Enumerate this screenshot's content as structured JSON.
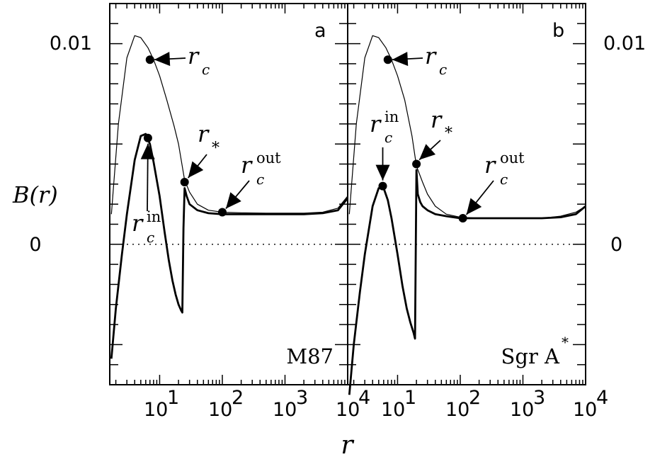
{
  "chart_data": {
    "type": "line",
    "ylabel": "B(r)",
    "xlabel": "r",
    "xscale": "log",
    "xlim": [
      1.6,
      10000
    ],
    "ylim": [
      -0.007,
      0.012
    ],
    "grid": false,
    "reference_line": {
      "y": 0,
      "style": "dotted"
    },
    "x_tick_labels": [
      "10",
      "10",
      "10",
      "10"
    ],
    "x_tick_exponents": [
      "1",
      "2",
      "3",
      "4"
    ],
    "y_tick_labels": [
      "0.01",
      "0"
    ],
    "panels": [
      {
        "letter": "a",
        "object": "M87",
        "series": [
          {
            "x": [
              1.7,
              2.2,
              3,
              4,
              5,
              6.5,
              8,
              10,
              13,
              17,
              20,
              25,
              30,
              40,
              60,
              100,
              200,
              500,
              1000,
              2000,
              4000,
              7000,
              10000
            ],
            "y": [
              0.0015,
              0.006,
              0.0093,
              0.0104,
              0.0103,
              0.0098,
              0.0092,
              0.0084,
              0.0072,
              0.0059,
              0.005,
              0.0032,
              0.0026,
              0.002,
              0.0017,
              0.0016,
              0.00157,
              0.00155,
              0.00155,
              0.00155,
              0.0016,
              0.0018,
              0.0024
            ]
          },
          {
            "x": [
              1.7,
              2,
              2.5,
              3,
              4,
              5,
              6,
              7,
              8,
              10,
              12,
              14,
              16,
              18,
              20,
              22,
              23,
              24,
              25,
              27,
              30,
              40,
              60,
              100,
              200,
              500,
              1000,
              2000,
              4000,
              7000,
              10000
            ],
            "y": [
              -0.0057,
              -0.0032,
              -0.0005,
              0.0015,
              0.0042,
              0.0054,
              0.0055,
              0.005,
              0.0041,
              0.0024,
              0.0006,
              -0.0008,
              -0.0018,
              -0.0025,
              -0.003,
              -0.0033,
              -0.0034,
              0.0008,
              0.0028,
              0.0024,
              0.002,
              0.0017,
              0.00155,
              0.0015,
              0.0015,
              0.0015,
              0.0015,
              0.0015,
              0.00155,
              0.0017,
              0.0023
            ]
          }
        ],
        "points": [
          {
            "name": "r_c",
            "x": 7,
            "y": 0.0092
          },
          {
            "name": "r_c^in",
            "x": 6.5,
            "y": 0.0053
          },
          {
            "name": "r_*",
            "x": 25,
            "y": 0.0031
          },
          {
            "name": "r_c^out",
            "x": 100,
            "y": 0.0016
          }
        ]
      },
      {
        "letter": "b",
        "object": "Sgr A",
        "object_superscript": "*",
        "series": [
          {
            "x": [
              1.7,
              2.2,
              3,
              4,
              5,
              6.5,
              8,
              10,
              13,
              17,
              20,
              25,
              30,
              40,
              60,
              100,
              200,
              500,
              1000,
              2000,
              4000,
              7000,
              10000
            ],
            "y": [
              0.0015,
              0.006,
              0.0093,
              0.0104,
              0.0103,
              0.0098,
              0.0092,
              0.0084,
              0.0072,
              0.0054,
              0.0039,
              0.0031,
              0.0025,
              0.0019,
              0.0015,
              0.00135,
              0.0013,
              0.0013,
              0.0013,
              0.0013,
              0.0014,
              0.0016,
              0.0019
            ]
          },
          {
            "x": [
              1.7,
              2,
              2.5,
              3,
              4,
              5,
              6,
              7,
              8,
              10,
              12,
              14,
              16,
              18,
              19,
              20,
              21,
              23,
              25,
              30,
              40,
              60,
              100,
              200,
              500,
              1000,
              2000,
              4000,
              7000,
              10000
            ],
            "y": [
              -0.0075,
              -0.005,
              -0.0024,
              -0.0005,
              0.0019,
              0.0028,
              0.0028,
              0.0022,
              0.0013,
              -0.0005,
              -0.0021,
              -0.0032,
              -0.0039,
              -0.0044,
              -0.0047,
              0.0037,
              0.0025,
              0.0021,
              0.0019,
              0.0017,
              0.0015,
              0.0014,
              0.0013,
              0.0013,
              0.0013,
              0.0013,
              0.0013,
              0.00135,
              0.0015,
              0.0019
            ]
          }
        ],
        "points": [
          {
            "name": "r_c",
            "x": 7,
            "y": 0.0092
          },
          {
            "name": "r_c^in",
            "x": 5.8,
            "y": 0.0029
          },
          {
            "name": "r_*",
            "x": 20,
            "y": 0.004
          },
          {
            "name": "r_c^out",
            "x": 110,
            "y": 0.0013
          }
        ]
      }
    ],
    "annotations": {
      "rc": "r",
      "rc_sub": "c",
      "rstar": "r",
      "rstar_sub": "*",
      "rin": "r",
      "rin_sub": "c",
      "rin_sup": "in",
      "rout": "r",
      "rout_sub": "c",
      "rout_sup": "out"
    }
  }
}
